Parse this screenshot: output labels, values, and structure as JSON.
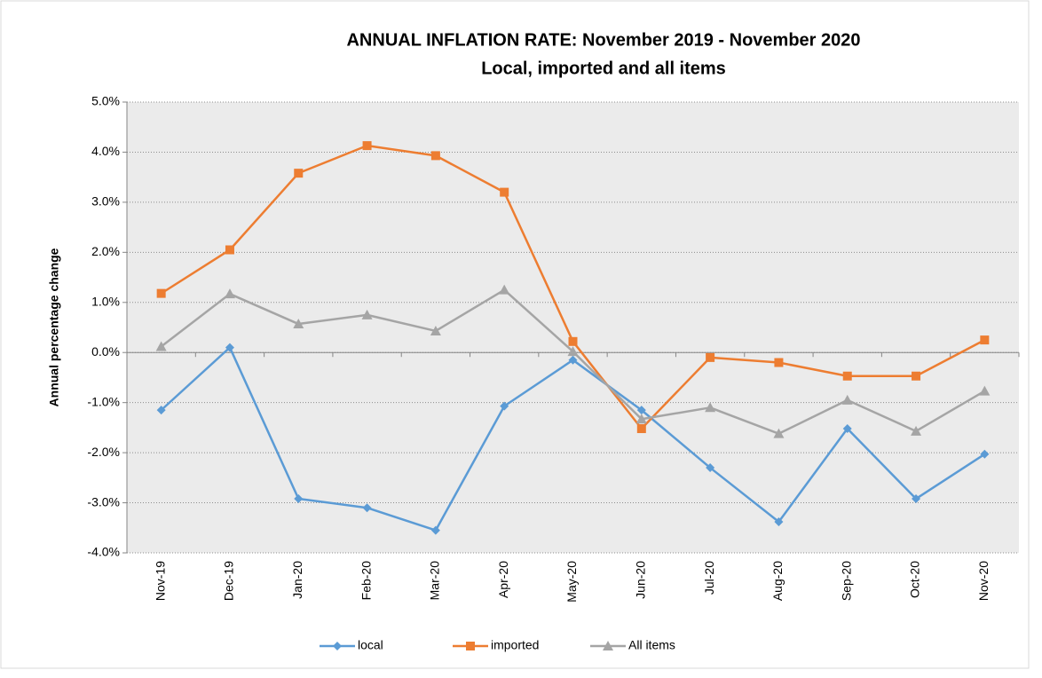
{
  "chart_data": {
    "type": "line",
    "title": "ANNUAL INFLATION RATE: November 2019 - November 2020",
    "subtitle": "Local, imported and all items",
    "y_label": "Annual percentage change",
    "categories": [
      "Nov-19",
      "Dec-19",
      "Jan-20",
      "Feb-20",
      "Mar-20",
      "Apr-20",
      "May-20",
      "Jun-20",
      "Jul-20",
      "Aug-20",
      "Sep-20",
      "Oct-20",
      "Nov-20"
    ],
    "series": [
      {
        "name": "local",
        "color": "#5b9bd5",
        "marker": "diamond",
        "values": [
          -1.15,
          0.1,
          -2.92,
          -3.1,
          -3.55,
          -1.07,
          -0.15,
          -1.15,
          -2.3,
          -3.38,
          -1.52,
          -2.92,
          -2.03
        ]
      },
      {
        "name": "imported",
        "color": "#ed7d31",
        "marker": "square",
        "values": [
          1.18,
          2.05,
          3.58,
          4.13,
          3.93,
          3.2,
          0.22,
          -1.52,
          -0.1,
          -0.2,
          -0.47,
          -0.47,
          0.25
        ]
      },
      {
        "name": "All items",
        "color": "#a5a5a5",
        "marker": "triangle",
        "values": [
          0.12,
          1.17,
          0.57,
          0.75,
          0.43,
          1.25,
          0.02,
          -1.33,
          -1.1,
          -1.62,
          -0.95,
          -1.57,
          -0.77
        ]
      }
    ],
    "ylim": [
      -4,
      5
    ],
    "yticks": [
      {
        "value": -4,
        "label": "-4.0%"
      },
      {
        "value": -3,
        "label": "-3.0%"
      },
      {
        "value": -2,
        "label": "-2.0%"
      },
      {
        "value": -1,
        "label": "-1.0%"
      },
      {
        "value": 0,
        "label": "0.0%"
      },
      {
        "value": 1,
        "label": "1.0%"
      },
      {
        "value": 2,
        "label": "2.0%"
      },
      {
        "value": 3,
        "label": "3.0%"
      },
      {
        "value": 4,
        "label": "4.0%"
      },
      {
        "value": 5,
        "label": "5.0%"
      }
    ],
    "grid": true,
    "legend": "bottom"
  }
}
